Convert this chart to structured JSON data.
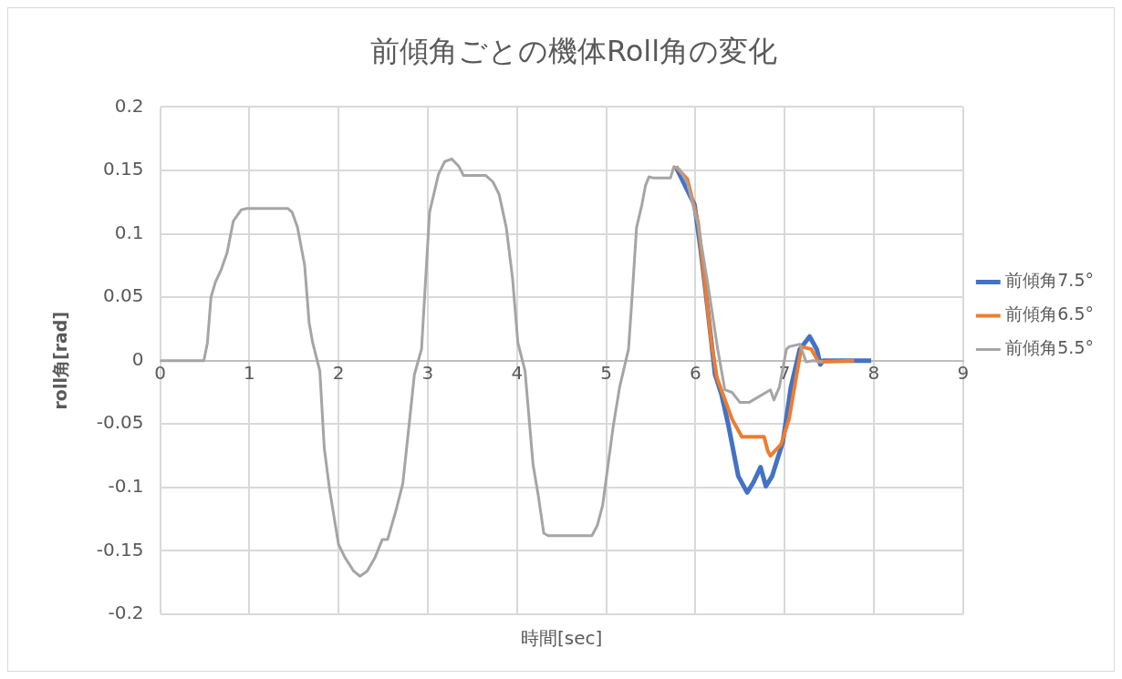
{
  "chart_data": {
    "type": "line",
    "title": "前傾角ごとの機体Roll角の変化",
    "xlabel": "時間[sec]",
    "ylabel": "roll角[rad]",
    "xlim": [
      0,
      9
    ],
    "xticks": [
      0,
      1,
      2,
      3,
      4,
      5,
      6,
      7,
      8,
      9
    ],
    "ylim": [
      -0.2,
      0.2
    ],
    "yticks": [
      -0.2,
      -0.15,
      -0.1,
      -0.05,
      0,
      0.05,
      0.1,
      0.15,
      0.2
    ],
    "grid": true,
    "legend": "right",
    "series": [
      {
        "name": "前傾角7.5°",
        "color": "#4472c4",
        "x": [
          5.78,
          5.99,
          6.06,
          6.14,
          6.22,
          6.29,
          6.37,
          6.48,
          6.58,
          6.65,
          6.73,
          6.79,
          6.86,
          6.98,
          7.07,
          7.17,
          7.28,
          7.36,
          7.4,
          7.43,
          7.97
        ],
        "values": [
          0.153,
          0.123,
          0.087,
          0.039,
          -0.011,
          -0.026,
          -0.051,
          -0.091,
          -0.104,
          -0.096,
          -0.084,
          -0.099,
          -0.091,
          -0.064,
          -0.021,
          0.009,
          0.019,
          0.009,
          -0.003,
          0,
          0
        ]
      },
      {
        "name": "前傾角6.5°",
        "color": "#ed7d31",
        "x": [
          5.78,
          5.91,
          6.03,
          6.1,
          6.18,
          6.24,
          6.29,
          6.41,
          6.52,
          6.77,
          6.81,
          6.84,
          6.96,
          7.05,
          7.13,
          7.19,
          7.3,
          7.38,
          7.78
        ],
        "values": [
          0.153,
          0.143,
          0.109,
          0.065,
          0.014,
          -0.013,
          -0.023,
          -0.046,
          -0.06,
          -0.06,
          -0.071,
          -0.075,
          -0.066,
          -0.046,
          -0.013,
          0.011,
          0.009,
          -0.001,
          0
        ]
      },
      {
        "name": "前傾角5.5°",
        "color": "#a5a5a5",
        "x": [
          0,
          0.49,
          0.53,
          0.57,
          0.62,
          0.68,
          0.75,
          0.82,
          0.91,
          0.97,
          1.43,
          1.48,
          1.54,
          1.62,
          1.67,
          1.71,
          1.79,
          1.84,
          1.9,
          2.0,
          2.07,
          2.17,
          2.24,
          2.32,
          2.41,
          2.49,
          2.55,
          2.64,
          2.72,
          2.79,
          2.85,
          2.93,
          2.97,
          3.02,
          3.12,
          3.19,
          3.27,
          3.35,
          3.4,
          3.65,
          3.73,
          3.8,
          3.88,
          3.95,
          4.01,
          4.09,
          4.18,
          4.24,
          4.3,
          4.35,
          4.84,
          4.9,
          4.96,
          5.08,
          5.15,
          5.21,
          5.25,
          5.29,
          5.34,
          5.4,
          5.44,
          5.48,
          5.53,
          5.72,
          5.76,
          5.82,
          5.91,
          6.03,
          6.14,
          6.25,
          6.33,
          6.41,
          6.5,
          6.6,
          6.84,
          6.88,
          6.94,
          7.02,
          7.05,
          7.17,
          7.24,
          7.32,
          7.43
        ],
        "values": [
          0,
          0,
          0.014,
          0.05,
          0.062,
          0.071,
          0.085,
          0.11,
          0.119,
          0.12,
          0.12,
          0.117,
          0.105,
          0.075,
          0.03,
          0.014,
          -0.008,
          -0.069,
          -0.102,
          -0.145,
          -0.155,
          -0.166,
          -0.17,
          -0.166,
          -0.155,
          -0.141,
          -0.141,
          -0.119,
          -0.097,
          -0.051,
          -0.011,
          0.009,
          0.057,
          0.117,
          0.147,
          0.157,
          0.159,
          0.153,
          0.146,
          0.146,
          0.141,
          0.131,
          0.105,
          0.065,
          0.014,
          -0.008,
          -0.082,
          -0.107,
          -0.136,
          -0.138,
          -0.138,
          -0.13,
          -0.114,
          -0.051,
          -0.021,
          -0.003,
          0.009,
          0.05,
          0.105,
          0.123,
          0.138,
          0.145,
          0.144,
          0.144,
          0.153,
          0.151,
          0.14,
          0.107,
          0.06,
          0.009,
          -0.023,
          -0.025,
          -0.033,
          -0.033,
          -0.023,
          -0.031,
          -0.021,
          0.009,
          0.011,
          0.013,
          -0.001,
          0,
          -0.001
        ]
      }
    ]
  }
}
